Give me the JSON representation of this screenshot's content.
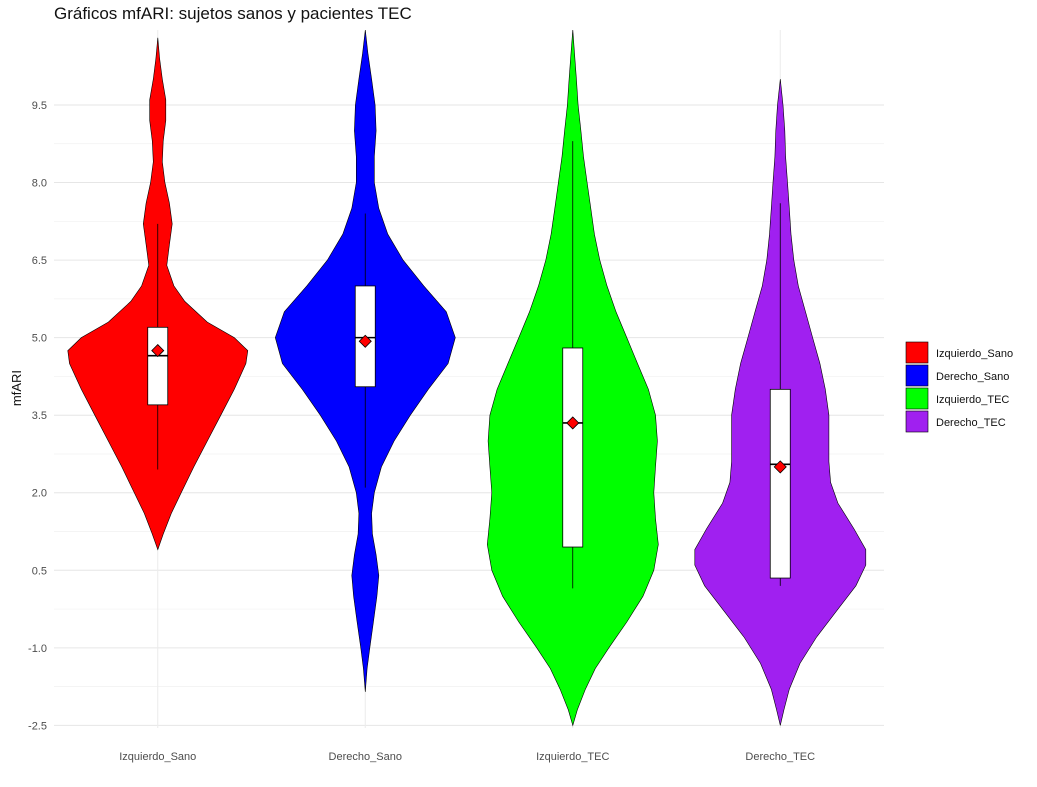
{
  "chart_data": {
    "type": "violin",
    "title": "Gráficos mfARI: sujetos sanos y pacientes TEC",
    "xlabel": "",
    "ylabel": "mfARI",
    "ylim": [
      -2.55,
      10.95
    ],
    "yticks": [
      -2.5,
      -1.0,
      0.5,
      2.0,
      3.5,
      5.0,
      6.5,
      8.0,
      9.5
    ],
    "ytick_labels": [
      "-2.5",
      "-1.0",
      "0.5",
      "2.0",
      "3.5",
      "5.0",
      "6.5",
      "8.0",
      "9.5"
    ],
    "grid": true,
    "legend_position": "right",
    "categories": [
      "Izquierdo_Sano",
      "Derecho_Sano",
      "Izquierdo_TEC",
      "Derecho_TEC"
    ],
    "series": [
      {
        "name": "Izquierdo_Sano",
        "color": "#ff0000",
        "box": {
          "whisker_low": 2.45,
          "q1": 3.7,
          "median": 4.65,
          "q3": 5.2,
          "whisker_high": 7.2
        },
        "mean": 4.75,
        "density": [
          [
            0.9,
            0.0
          ],
          [
            1.2,
            0.06
          ],
          [
            1.6,
            0.15
          ],
          [
            2.0,
            0.26
          ],
          [
            2.5,
            0.4
          ],
          [
            3.0,
            0.55
          ],
          [
            3.5,
            0.7
          ],
          [
            4.0,
            0.85
          ],
          [
            4.5,
            0.98
          ],
          [
            4.75,
            1.0
          ],
          [
            5.0,
            0.85
          ],
          [
            5.3,
            0.55
          ],
          [
            5.7,
            0.3
          ],
          [
            6.0,
            0.18
          ],
          [
            6.4,
            0.1
          ],
          [
            6.8,
            0.13
          ],
          [
            7.2,
            0.16
          ],
          [
            7.6,
            0.13
          ],
          [
            8.0,
            0.08
          ],
          [
            8.4,
            0.05
          ],
          [
            8.8,
            0.06
          ],
          [
            9.2,
            0.09
          ],
          [
            9.6,
            0.09
          ],
          [
            10.0,
            0.05
          ],
          [
            10.4,
            0.02
          ],
          [
            10.8,
            0.0
          ]
        ]
      },
      {
        "name": "Derecho_Sano",
        "color": "#0000ff",
        "box": {
          "whisker_low": 2.1,
          "q1": 4.05,
          "median": 5.0,
          "q3": 6.0,
          "whisker_high": 7.4
        },
        "mean": 4.93,
        "density": [
          [
            -1.85,
            0.0
          ],
          [
            -1.4,
            0.02
          ],
          [
            -1.0,
            0.05
          ],
          [
            -0.5,
            0.09
          ],
          [
            0.0,
            0.13
          ],
          [
            0.4,
            0.15
          ],
          [
            0.8,
            0.12
          ],
          [
            1.2,
            0.08
          ],
          [
            1.6,
            0.07
          ],
          [
            2.0,
            0.1
          ],
          [
            2.5,
            0.18
          ],
          [
            3.0,
            0.32
          ],
          [
            3.5,
            0.5
          ],
          [
            4.0,
            0.7
          ],
          [
            4.5,
            0.92
          ],
          [
            5.0,
            1.0
          ],
          [
            5.5,
            0.9
          ],
          [
            6.0,
            0.65
          ],
          [
            6.5,
            0.42
          ],
          [
            7.0,
            0.25
          ],
          [
            7.5,
            0.15
          ],
          [
            8.0,
            0.1
          ],
          [
            8.5,
            0.1
          ],
          [
            9.0,
            0.12
          ],
          [
            9.5,
            0.11
          ],
          [
            10.0,
            0.07
          ],
          [
            10.5,
            0.03
          ],
          [
            10.95,
            0.0
          ]
        ]
      },
      {
        "name": "Izquierdo_TEC",
        "color": "#00ff00",
        "box": {
          "whisker_low": 0.15,
          "q1": 0.95,
          "median": 3.35,
          "q3": 4.8,
          "whisker_high": 8.8
        },
        "mean": 3.35,
        "density": [
          [
            -2.5,
            0.0
          ],
          [
            -2.2,
            0.05
          ],
          [
            -1.8,
            0.14
          ],
          [
            -1.4,
            0.25
          ],
          [
            -1.0,
            0.4
          ],
          [
            -0.5,
            0.6
          ],
          [
            0.0,
            0.78
          ],
          [
            0.5,
            0.9
          ],
          [
            1.0,
            0.95
          ],
          [
            1.5,
            0.92
          ],
          [
            2.0,
            0.9
          ],
          [
            2.5,
            0.92
          ],
          [
            3.0,
            0.94
          ],
          [
            3.5,
            0.92
          ],
          [
            4.0,
            0.84
          ],
          [
            4.5,
            0.72
          ],
          [
            5.0,
            0.6
          ],
          [
            5.5,
            0.48
          ],
          [
            6.0,
            0.38
          ],
          [
            6.5,
            0.3
          ],
          [
            7.0,
            0.24
          ],
          [
            7.5,
            0.2
          ],
          [
            8.0,
            0.16
          ],
          [
            8.5,
            0.12
          ],
          [
            9.0,
            0.09
          ],
          [
            9.5,
            0.06
          ],
          [
            10.0,
            0.04
          ],
          [
            10.5,
            0.02
          ],
          [
            10.95,
            0.0
          ]
        ]
      },
      {
        "name": "Derecho_TEC",
        "color": "#a020f0",
        "box": {
          "whisker_low": 0.2,
          "q1": 0.35,
          "median": 2.55,
          "q3": 4.0,
          "whisker_high": 7.6
        },
        "mean": 2.5,
        "density": [
          [
            -2.5,
            0.0
          ],
          [
            -2.2,
            0.04
          ],
          [
            -1.8,
            0.1
          ],
          [
            -1.3,
            0.22
          ],
          [
            -0.8,
            0.4
          ],
          [
            -0.3,
            0.62
          ],
          [
            0.2,
            0.84
          ],
          [
            0.6,
            0.95
          ],
          [
            0.9,
            0.95
          ],
          [
            1.3,
            0.82
          ],
          [
            1.8,
            0.64
          ],
          [
            2.2,
            0.56
          ],
          [
            2.6,
            0.54
          ],
          [
            3.0,
            0.54
          ],
          [
            3.5,
            0.54
          ],
          [
            4.0,
            0.5
          ],
          [
            4.5,
            0.44
          ],
          [
            5.0,
            0.36
          ],
          [
            5.5,
            0.28
          ],
          [
            6.0,
            0.2
          ],
          [
            6.5,
            0.15
          ],
          [
            7.0,
            0.12
          ],
          [
            7.5,
            0.1
          ],
          [
            8.0,
            0.08
          ],
          [
            8.5,
            0.06
          ],
          [
            9.0,
            0.05
          ],
          [
            9.5,
            0.03
          ],
          [
            10.0,
            0.0
          ]
        ]
      }
    ]
  }
}
